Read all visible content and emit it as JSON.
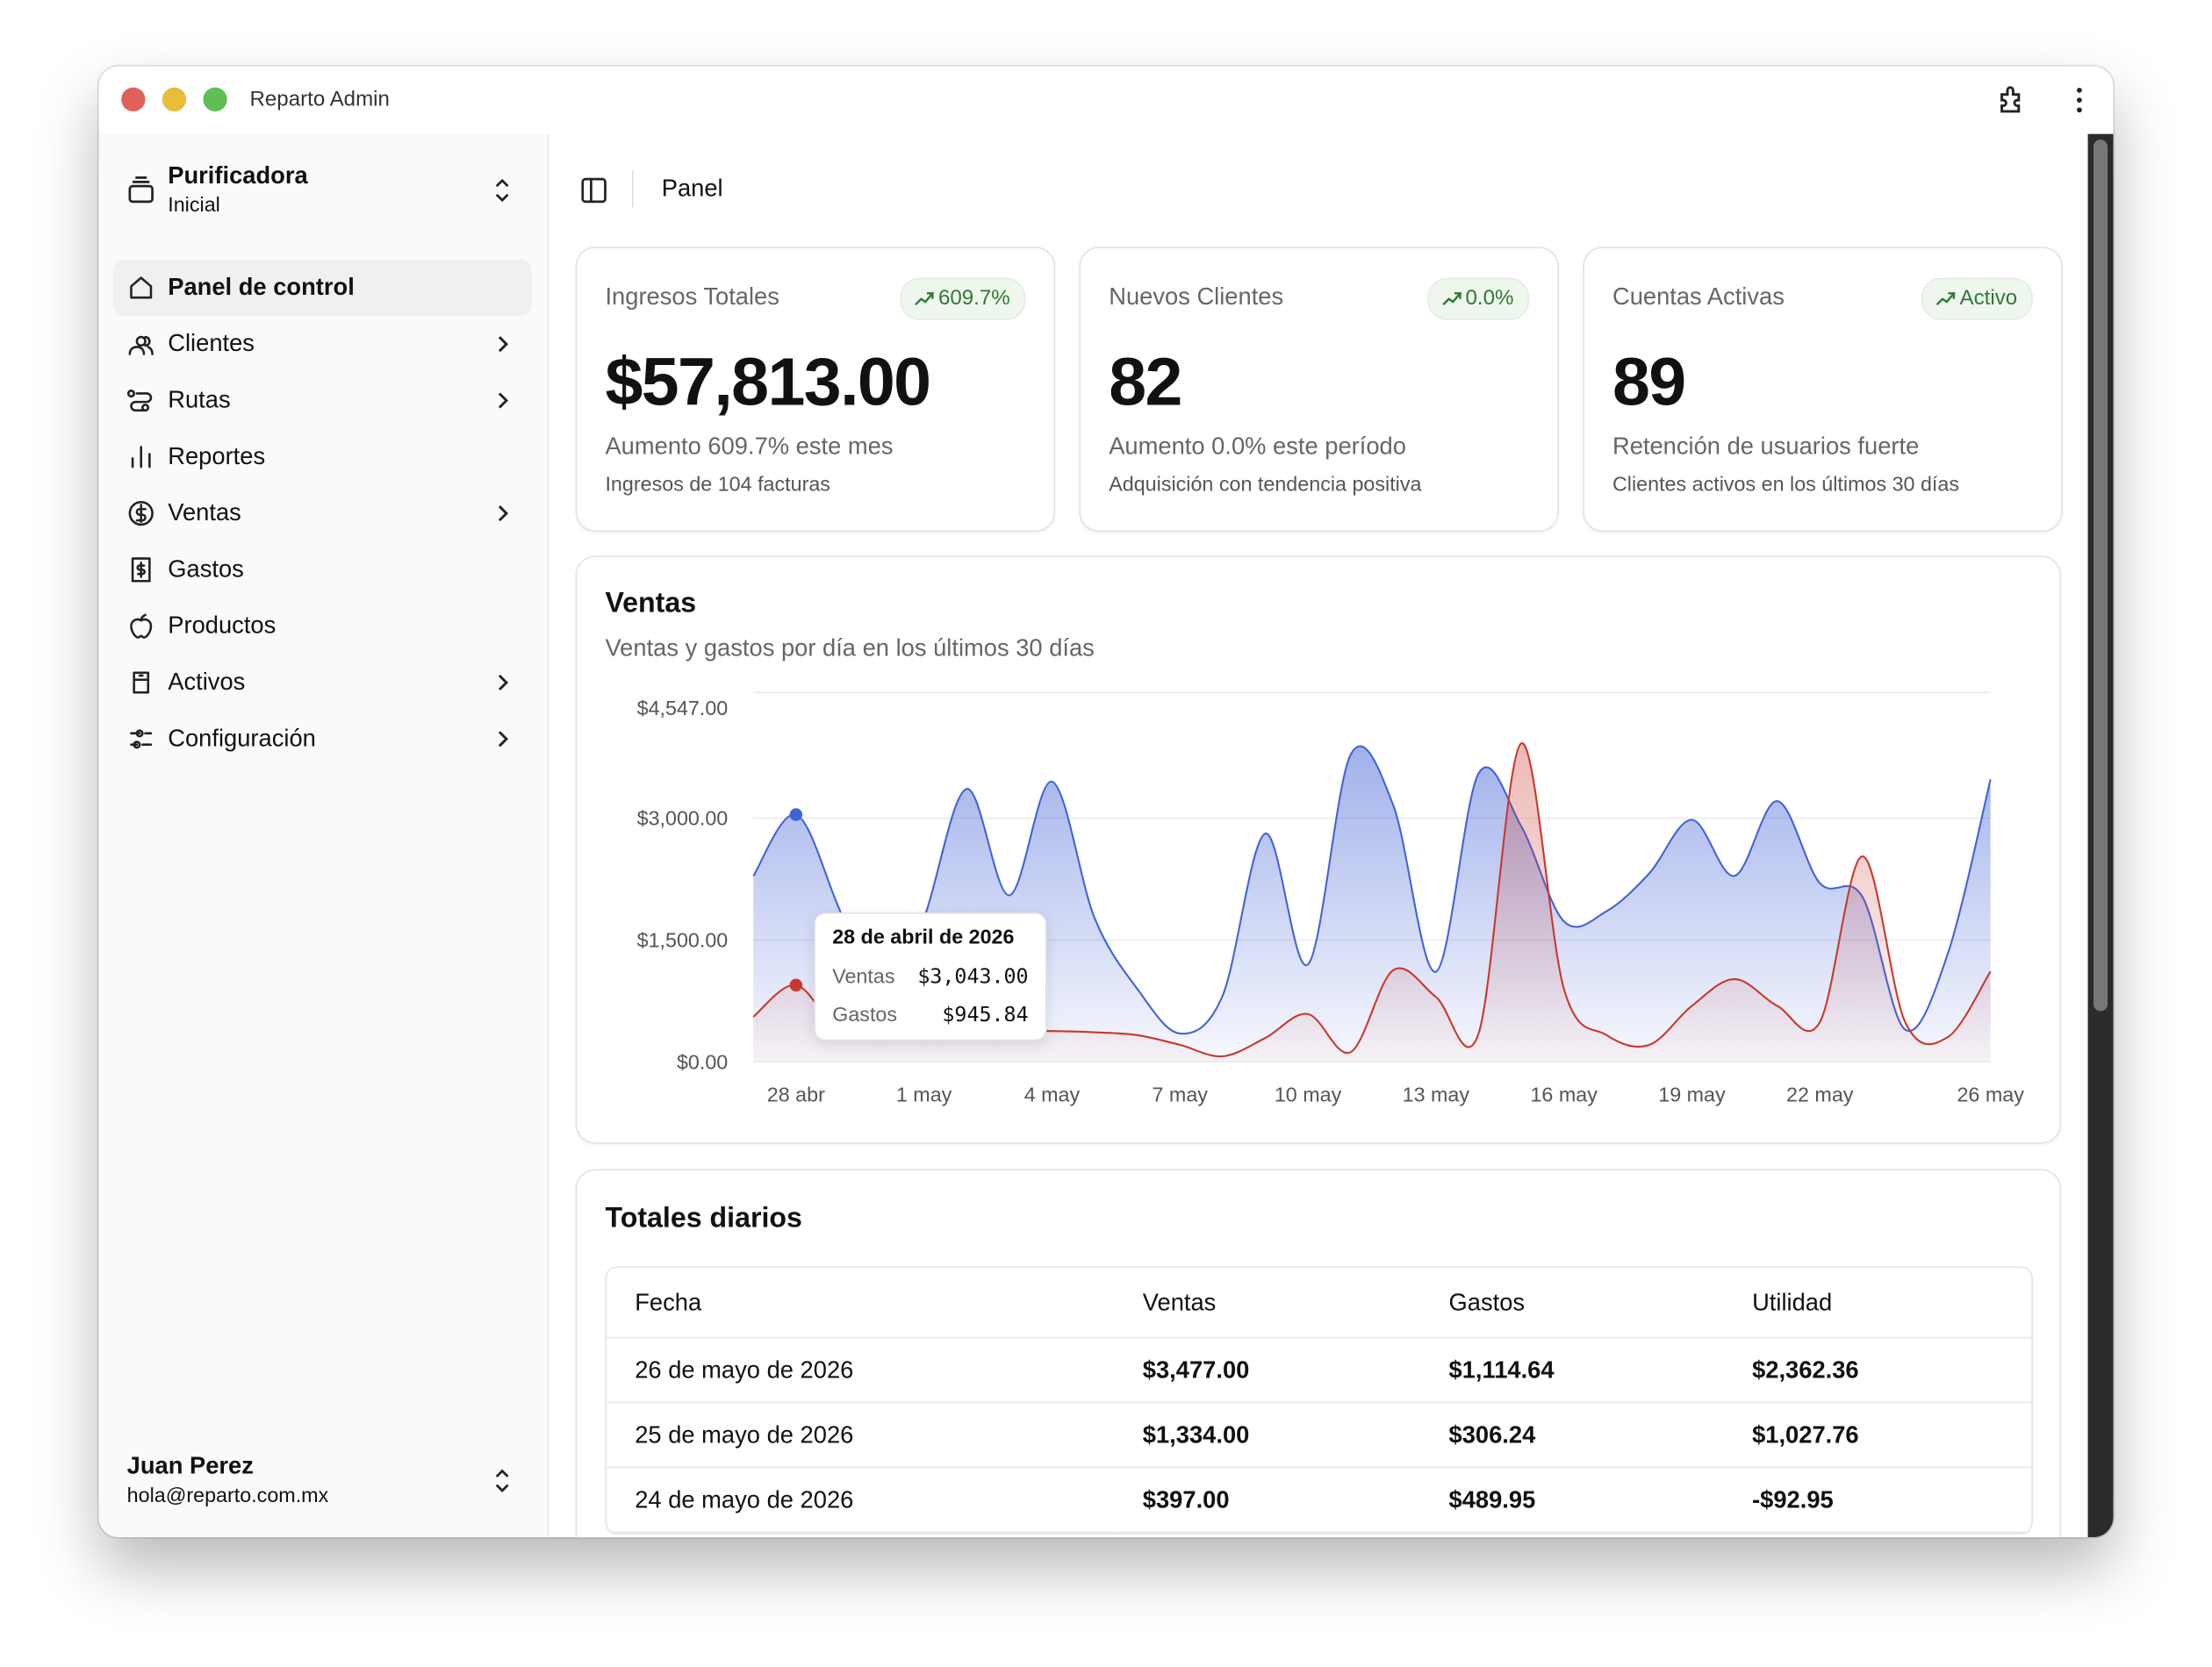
{
  "window": {
    "title": "Reparto Admin"
  },
  "sidebar": {
    "org": {
      "name": "Purificadora",
      "plan": "Inicial"
    },
    "nav": [
      {
        "label": "Panel de control",
        "submenu": false
      },
      {
        "label": "Clientes",
        "submenu": true
      },
      {
        "label": "Rutas",
        "submenu": true
      },
      {
        "label": "Reportes",
        "submenu": false
      },
      {
        "label": "Ventas",
        "submenu": true
      },
      {
        "label": "Gastos",
        "submenu": false
      },
      {
        "label": "Productos",
        "submenu": false
      },
      {
        "label": "Activos",
        "submenu": true
      },
      {
        "label": "Configuración",
        "submenu": true
      }
    ],
    "user": {
      "name": "Juan Perez",
      "email": "hola@reparto.com.mx"
    }
  },
  "header": {
    "title": "Panel"
  },
  "cards": [
    {
      "title": "Ingresos Totales",
      "badge": "609.7%",
      "value": "$57,813.00",
      "description": "Aumento 609.7% este mes",
      "note": "Ingresos de 104 facturas"
    },
    {
      "title": "Nuevos Clientes",
      "badge": "0.0%",
      "value": "82",
      "description": "Aumento 0.0% este período",
      "note": "Adquisición con tendencia positiva"
    },
    {
      "title": "Cuentas Activas",
      "badge": "Activo",
      "value": "89",
      "description": "Retención de usuarios fuerte",
      "note": "Clientes activos en los últimos 30 días"
    }
  ],
  "chart_data": {
    "type": "area",
    "title": "Ventas",
    "subtitle": "Ventas y gastos por día en los últimos 30 días",
    "categories": [
      null,
      "28 abr",
      null,
      null,
      "1 may",
      null,
      null,
      "4 may",
      null,
      null,
      "7 may",
      null,
      null,
      "10 may",
      null,
      null,
      "13 may",
      null,
      null,
      "16 may",
      null,
      null,
      "19 may",
      null,
      null,
      "22 may",
      null,
      null,
      null,
      "26 may"
    ],
    "series": [
      {
        "name": "Ventas",
        "color": "#4263d6",
        "values": [
          2289,
          3043,
          1900,
          600,
          1770,
          3360,
          2050,
          3450,
          1770,
          900,
          350,
          815,
          2810,
          1200,
          3780,
          3160,
          1110,
          3550,
          2900,
          1730,
          1855,
          2320,
          2980,
          2290,
          3210,
          2200,
          2030,
          397,
          1334,
          3477
        ]
      },
      {
        "name": "Gastos",
        "color": "#c8382d",
        "values": [
          555,
          945.84,
          380,
          300,
          295,
          300,
          380,
          380,
          365,
          330,
          210,
          70,
          295,
          590,
          120,
          1130,
          800,
          350,
          3920,
          900,
          330,
          210,
          690,
          1020,
          690,
          490,
          2530,
          489.95,
          306.24,
          1114.64
        ]
      }
    ],
    "ylim": [
      0,
      4547
    ],
    "yticks": [
      {
        "value": 0,
        "label": "$0.00"
      },
      {
        "value": 1500,
        "label": "$1,500.00"
      },
      {
        "value": 3000,
        "label": "$3,000.00"
      },
      {
        "value": 4547,
        "label": "$4,547.00"
      }
    ],
    "grid": true,
    "tooltip": {
      "index": 1,
      "title": "28 de abril de 2026",
      "labels": [
        "$3,043.00",
        "$945.84"
      ]
    }
  },
  "table": {
    "title": "Totales diarios",
    "columns": [
      "Fecha",
      "Ventas",
      "Gastos",
      "Utilidad"
    ],
    "rows": [
      [
        "26 de mayo de 2026",
        "$3,477.00",
        "$1,114.64",
        "$2,362.36"
      ],
      [
        "25 de mayo de 2026",
        "$1,334.00",
        "$306.24",
        "$1,027.76"
      ],
      [
        "24 de mayo de 2026",
        "$397.00",
        "$489.95",
        "-$92.95"
      ]
    ]
  }
}
